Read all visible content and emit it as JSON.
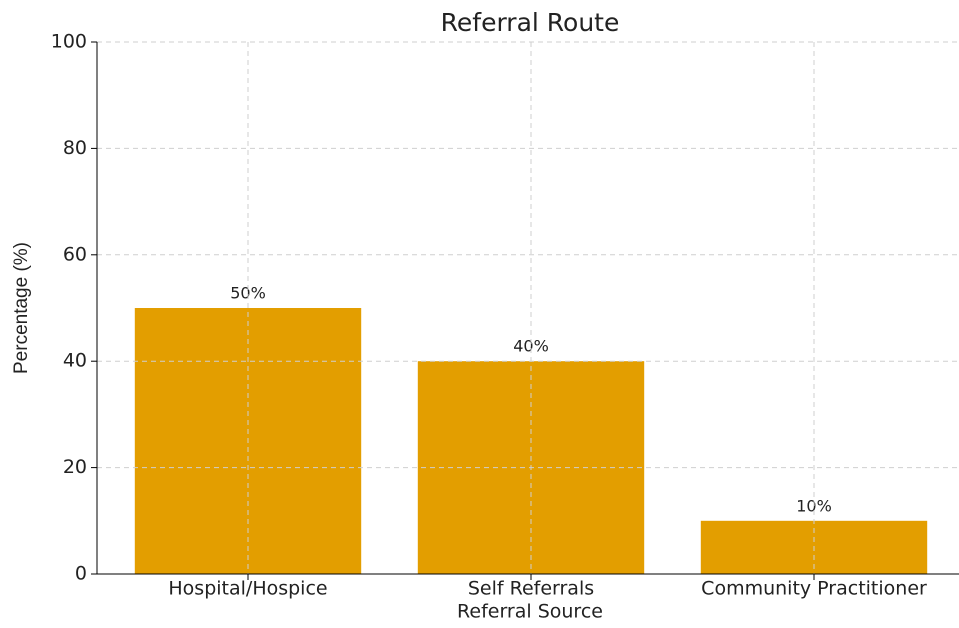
{
  "chart_data": {
    "type": "bar",
    "title": "Referral Route",
    "x_label": "Referral Source",
    "y_label": "Percentage (%)",
    "categories": [
      "Hospital/Hospice",
      "Self Referrals",
      "Community Practitioner"
    ],
    "values": [
      50,
      40,
      10
    ],
    "value_labels": [
      "50%",
      "40%",
      "10%"
    ],
    "color": "#e39e00",
    "ylim": [
      0,
      100
    ],
    "yticks": [
      0,
      20,
      40,
      60,
      80,
      100
    ],
    "grid": true
  }
}
